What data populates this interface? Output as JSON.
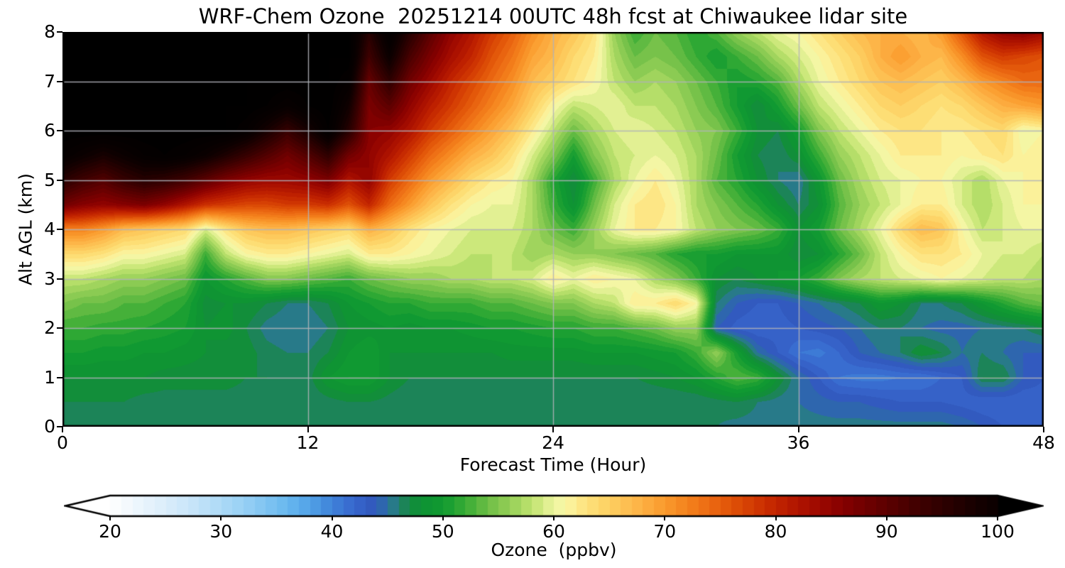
{
  "figure": {
    "background": "#ffffff",
    "grid_color": "#b0b3b8",
    "spine_color": "#000000",
    "under_color": "#ffffff",
    "over_color": "#000000"
  },
  "chart_data": {
    "type": "heatmap",
    "title": "WRF-Chem Ozone  20251214 00UTC 48h fcst at Chiwaukee lidar site",
    "xlabel": "Forecast Time (Hour)",
    "ylabel": "Alt AGL (km)",
    "colorbar_label": "Ozone  (ppbv)",
    "xlim": [
      0,
      48
    ],
    "ylim": [
      0,
      8
    ],
    "x_ticks": [
      0,
      12,
      24,
      36,
      48
    ],
    "y_ticks": [
      0,
      1,
      2,
      3,
      4,
      5,
      6,
      7,
      8
    ],
    "x_gridlines": [
      12,
      24,
      36
    ],
    "y_gridlines": [
      1,
      2,
      3,
      4,
      5,
      6,
      7
    ],
    "grid_on": true,
    "colorbar_ticks": [
      20,
      30,
      40,
      50,
      60,
      70,
      80,
      90,
      100
    ],
    "value_range": [
      20,
      100
    ],
    "contour_interval": 1,
    "colormap": [
      [
        16,
        "#ffffff"
      ],
      [
        20,
        "#ffffff"
      ],
      [
        24,
        "#e2f1fc"
      ],
      [
        28,
        "#c2e3f9"
      ],
      [
        32,
        "#98d1f5"
      ],
      [
        36,
        "#68b8ef"
      ],
      [
        38,
        "#52a2e7"
      ],
      [
        40,
        "#3f82d9"
      ],
      [
        42,
        "#3766cd"
      ],
      [
        44,
        "#3156ba"
      ],
      [
        45,
        "#2c76a2"
      ],
      [
        46,
        "#247e70"
      ],
      [
        47,
        "#158a40"
      ],
      [
        48,
        "#0e9234"
      ],
      [
        50,
        "#119b31"
      ],
      [
        52,
        "#38ac35"
      ],
      [
        54,
        "#6dbe46"
      ],
      [
        56,
        "#95cf57"
      ],
      [
        58,
        "#c0e36f"
      ],
      [
        60,
        "#eef59f"
      ],
      [
        61,
        "#f9f7a8"
      ],
      [
        62,
        "#fdeb8d"
      ],
      [
        64,
        "#fdd96d"
      ],
      [
        66,
        "#fdc557"
      ],
      [
        68,
        "#fdb043"
      ],
      [
        70,
        "#fa9a2d"
      ],
      [
        72,
        "#f4821d"
      ],
      [
        74,
        "#ec6a13"
      ],
      [
        76,
        "#e05207"
      ],
      [
        78,
        "#d23a03"
      ],
      [
        80,
        "#c22400"
      ],
      [
        82,
        "#b01400"
      ],
      [
        84,
        "#9c0800"
      ],
      [
        86,
        "#860000"
      ],
      [
        88,
        "#700000"
      ],
      [
        90,
        "#5c0000"
      ],
      [
        92,
        "#480000"
      ],
      [
        94,
        "#360000"
      ],
      [
        96,
        "#260000"
      ],
      [
        98,
        "#160000"
      ],
      [
        100,
        "#0a0000"
      ],
      [
        104,
        "#000000"
      ]
    ],
    "grid": {
      "hours_step": 1,
      "hours": [
        0,
        48
      ],
      "alts_desc": [
        8,
        7.5,
        7,
        6.5,
        6,
        5.5,
        5,
        4.5,
        4,
        3.5,
        3,
        2.5,
        2,
        1.5,
        1,
        0.5,
        0
      ],
      "values": [
        [
          104,
          104,
          104,
          104,
          104,
          104,
          104,
          104,
          104,
          104,
          104,
          104,
          104,
          104,
          104,
          96,
          103,
          96,
          90,
          85,
          82,
          78,
          75,
          71,
          68,
          66,
          63,
          56,
          52,
          54,
          53,
          51,
          53,
          56,
          58,
          60,
          61,
          63,
          65,
          67,
          68,
          68,
          67,
          70,
          76,
          82,
          85,
          86,
          84
        ],
        [
          104,
          104,
          104,
          104,
          104,
          104,
          104,
          104,
          104,
          104,
          104,
          104,
          104,
          104,
          104,
          93,
          100,
          92,
          87,
          83,
          80,
          76,
          73,
          69,
          67,
          64,
          62,
          57,
          54,
          55,
          54,
          52,
          50,
          52,
          54,
          57,
          59,
          61,
          63,
          65,
          68,
          70,
          68,
          67,
          71,
          76,
          78,
          77,
          76
        ],
        [
          104,
          104,
          104,
          104,
          104,
          104,
          104,
          104,
          104,
          104,
          104,
          104,
          104,
          104,
          102,
          89,
          95,
          88,
          84,
          80,
          77,
          74,
          71,
          67,
          65,
          63,
          61,
          58,
          56,
          57,
          56,
          54,
          52,
          50,
          51,
          53,
          57,
          60,
          62,
          64,
          66,
          67,
          66,
          65,
          67,
          70,
          72,
          74,
          74
        ],
        [
          104,
          104,
          104,
          104,
          104,
          104,
          104,
          104,
          104,
          104,
          103,
          101,
          103,
          104,
          99,
          87,
          90,
          85,
          81,
          78,
          75,
          72,
          69,
          65,
          61,
          58,
          59,
          60,
          58,
          58,
          57,
          55,
          53,
          50,
          47,
          50,
          54,
          58,
          60,
          62,
          64,
          65,
          64,
          63,
          64,
          66,
          68,
          69,
          70
        ],
        [
          104,
          104,
          104,
          104,
          104,
          104,
          104,
          104,
          104,
          102,
          98,
          94,
          98,
          103,
          96,
          86,
          85,
          82,
          78,
          75,
          72,
          69,
          66,
          62,
          58,
          54,
          57,
          59,
          60,
          59,
          58,
          56,
          55,
          52,
          48,
          47,
          50,
          55,
          58,
          60,
          62,
          63,
          63,
          62,
          62,
          63,
          64,
          60,
          61
        ],
        [
          102,
          100,
          98,
          100,
          102,
          103,
          102,
          100,
          97,
          94,
          91,
          88,
          91,
          95,
          88,
          85,
          82,
          78,
          74,
          71,
          68,
          66,
          63,
          59,
          55,
          50,
          55,
          58,
          59,
          60,
          59,
          57,
          54,
          50,
          47,
          46,
          48,
          52,
          56,
          58,
          60,
          62,
          62,
          62,
          61,
          62,
          63,
          61,
          62
        ],
        [
          96,
          93,
          91,
          94,
          96,
          95,
          93,
          90,
          87,
          85,
          84,
          84,
          85,
          87,
          82,
          85,
          78,
          74,
          70,
          67,
          64,
          62,
          61,
          57,
          51,
          47,
          52,
          57,
          60,
          62,
          60,
          57,
          53,
          51,
          48,
          46,
          45,
          49,
          54,
          57,
          59,
          60,
          61,
          61,
          59,
          57,
          60,
          61,
          62
        ],
        [
          88,
          86,
          85,
          86,
          87,
          85,
          82,
          79,
          78,
          77,
          77,
          78,
          78,
          79,
          76,
          80,
          74,
          70,
          66,
          63,
          61,
          60,
          60,
          57,
          52,
          48,
          54,
          59,
          62,
          63,
          61,
          57,
          55,
          53,
          51,
          48,
          46,
          48,
          53,
          56,
          58,
          60,
          62,
          62,
          59,
          57,
          59,
          61,
          61
        ],
        [
          72,
          72,
          70,
          67,
          66,
          65,
          64,
          59,
          63,
          66,
          67,
          67,
          66,
          65,
          64,
          68,
          66,
          63,
          61,
          60,
          59,
          59,
          59,
          57,
          54,
          52,
          56,
          60,
          62,
          62,
          61,
          58,
          56,
          55,
          54,
          52,
          48,
          50,
          54,
          57,
          60,
          64,
          67,
          66,
          61,
          58,
          59,
          60,
          60
        ],
        [
          64,
          64,
          63,
          61,
          61,
          60,
          59,
          52,
          58,
          61,
          62,
          62,
          61,
          60,
          59,
          62,
          62,
          61,
          60,
          59,
          58,
          58,
          58,
          56,
          57,
          56,
          56,
          55,
          54,
          53,
          51,
          50,
          50,
          49,
          49,
          49,
          47,
          48,
          51,
          54,
          58,
          61,
          63,
          63,
          62,
          60,
          59,
          59,
          58
        ],
        [
          58,
          58,
          57,
          56,
          56,
          55,
          54,
          49,
          51,
          53,
          55,
          55,
          54,
          53,
          52,
          54,
          55,
          56,
          56,
          57,
          57,
          58,
          58,
          59,
          62,
          60,
          62,
          61,
          60,
          57,
          55,
          52,
          48,
          47,
          48,
          49,
          50,
          52,
          55,
          57,
          58,
          59,
          60,
          61,
          60,
          59,
          58,
          58,
          57
        ],
        [
          55,
          54,
          54,
          53,
          53,
          52,
          51,
          47.5,
          48,
          48,
          47,
          46,
          46,
          47,
          49,
          50,
          51,
          51,
          52,
          52,
          52,
          53,
          53,
          54,
          55,
          55,
          57,
          58,
          62,
          62,
          64,
          61,
          46,
          44,
          43,
          43,
          44,
          45,
          46,
          47,
          49,
          48,
          46,
          46,
          47,
          49,
          51,
          53,
          54
        ],
        [
          52,
          52,
          51.5,
          51.5,
          51,
          50.5,
          50,
          48,
          48.5,
          47,
          45.5,
          45,
          45,
          46,
          48,
          48.5,
          49,
          48.5,
          49,
          49,
          49.5,
          50,
          50,
          50.5,
          51,
          51,
          52,
          52,
          53,
          54,
          56,
          56,
          44,
          42.5,
          42,
          42.5,
          43,
          43.5,
          44,
          45,
          46,
          46,
          45,
          44.5,
          44.5,
          45,
          45.5,
          46,
          47
        ],
        [
          50,
          50,
          49.5,
          49.5,
          49,
          49,
          48.5,
          48,
          47.5,
          47.5,
          46.5,
          46,
          46,
          47,
          49,
          50,
          48,
          48,
          48,
          48,
          48,
          48,
          48.5,
          48.5,
          48.5,
          48.5,
          49,
          49,
          49,
          49.5,
          50,
          52,
          56,
          50,
          45,
          43,
          41,
          40.5,
          42,
          44,
          45,
          46,
          48,
          47,
          45,
          46,
          45,
          44,
          44
        ],
        [
          48,
          48,
          48,
          48,
          48,
          47.5,
          47.5,
          47.5,
          47.5,
          47,
          47,
          46.5,
          46.5,
          49,
          50,
          50,
          48,
          47,
          47,
          47,
          47,
          47,
          47,
          47,
          47,
          47,
          47,
          47,
          47,
          47.5,
          48,
          49,
          51,
          53,
          52,
          48,
          45,
          43,
          41,
          40.5,
          40.5,
          41,
          41,
          42,
          43,
          47,
          47,
          44,
          43
        ],
        [
          47,
          47,
          47,
          47,
          46.5,
          46.5,
          46.5,
          46.5,
          46.5,
          46.5,
          46.5,
          46,
          46,
          46.5,
          47,
          47,
          46.5,
          46,
          46,
          46,
          46,
          46,
          46,
          46,
          46,
          46,
          46,
          46,
          46,
          46,
          46,
          46,
          46.5,
          47,
          46,
          45.5,
          45,
          44.5,
          44,
          44,
          43.5,
          43,
          43,
          43,
          42.5,
          42,
          42,
          42,
          42.5
        ],
        [
          46.5,
          46.5,
          46.5,
          46.5,
          46.5,
          46.5,
          46.5,
          46.5,
          46.5,
          46.5,
          46.5,
          46.5,
          46.5,
          46.5,
          46.5,
          46.5,
          46,
          46,
          46,
          46,
          46,
          46,
          46,
          46,
          46,
          46,
          46,
          46,
          46,
          46,
          46,
          46,
          46,
          45.5,
          45.5,
          45.5,
          45.5,
          45.5,
          45.5,
          45.5,
          45.5,
          45.5,
          45.5,
          45.5,
          45,
          44,
          43,
          42,
          42
        ]
      ]
    }
  }
}
